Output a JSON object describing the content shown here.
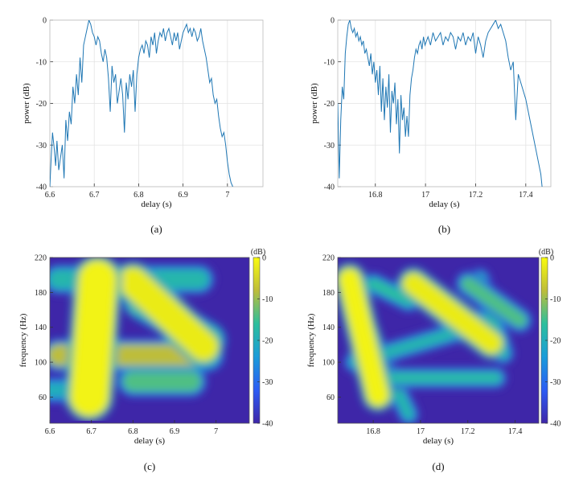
{
  "colors": {
    "line": "#1f77b4",
    "grid": "#e3e3e3",
    "axis": "#333333"
  },
  "chart_data": [
    {
      "id": "a",
      "type": "line",
      "caption": "(a)",
      "xlabel": "delay (s)",
      "ylabel": "power (dB)",
      "xlim": [
        6.6,
        7.08
      ],
      "ylim": [
        -40,
        0
      ],
      "xticks": [
        6.6,
        6.7,
        6.8,
        6.9,
        7
      ],
      "xtick_labels": [
        "6.6",
        "6.7",
        "6.8",
        "6.9",
        "7"
      ],
      "yticks": [
        0,
        -10,
        -20,
        -30,
        -40
      ],
      "ytick_labels": [
        "0",
        "-10",
        "-20",
        "-30",
        "-40"
      ],
      "grid": true,
      "x": [
        6.6,
        6.603,
        6.606,
        6.61,
        6.613,
        6.616,
        6.62,
        6.624,
        6.628,
        6.632,
        6.636,
        6.64,
        6.644,
        6.648,
        6.652,
        6.656,
        6.66,
        6.664,
        6.668,
        6.672,
        6.676,
        6.68,
        6.684,
        6.688,
        6.692,
        6.696,
        6.7,
        6.704,
        6.708,
        6.712,
        6.716,
        6.72,
        6.724,
        6.728,
        6.732,
        6.736,
        6.74,
        6.744,
        6.748,
        6.752,
        6.756,
        6.76,
        6.764,
        6.768,
        6.772,
        6.776,
        6.78,
        6.784,
        6.788,
        6.792,
        6.796,
        6.8,
        6.804,
        6.808,
        6.812,
        6.816,
        6.82,
        6.824,
        6.828,
        6.832,
        6.836,
        6.84,
        6.844,
        6.848,
        6.852,
        6.856,
        6.86,
        6.864,
        6.868,
        6.872,
        6.876,
        6.88,
        6.884,
        6.888,
        6.892,
        6.896,
        6.9,
        6.904,
        6.908,
        6.912,
        6.916,
        6.92,
        6.924,
        6.928,
        6.932,
        6.936,
        6.94,
        6.944,
        6.948,
        6.952,
        6.956,
        6.96,
        6.964,
        6.968,
        6.972,
        6.976,
        6.98,
        6.984,
        6.988,
        6.992,
        6.996,
        7.0,
        7.004,
        7.008,
        7.012
      ],
      "y": [
        -40,
        -33,
        -27,
        -31,
        -35,
        -29,
        -36,
        -33,
        -30,
        -38,
        -24,
        -29,
        -22,
        -25,
        -16,
        -20,
        -13,
        -18,
        -9,
        -15,
        -6,
        -4,
        -2,
        0,
        -1,
        -3,
        -4,
        -6,
        -4,
        -5,
        -8,
        -10,
        -7,
        -9,
        -14,
        -22,
        -11,
        -15,
        -13,
        -20,
        -17,
        -14,
        -18,
        -27,
        -15,
        -19,
        -13,
        -16,
        -12,
        -22,
        -13,
        -9,
        -7,
        -6,
        -8,
        -5,
        -6,
        -9,
        -4,
        -6,
        -3,
        -8,
        -5,
        -3,
        -4,
        -2,
        -5,
        -3,
        -2,
        -4,
        -6,
        -3,
        -5,
        -3,
        -7,
        -5,
        -3,
        -2,
        -1,
        -3,
        -2,
        -4,
        -2,
        -3,
        -5,
        -4,
        -2,
        -5,
        -7,
        -9,
        -12,
        -15,
        -14,
        -18,
        -20,
        -19,
        -23,
        -26,
        -28,
        -27,
        -30,
        -34,
        -37,
        -39,
        -40
      ]
    },
    {
      "id": "b",
      "type": "line",
      "caption": "(b)",
      "xlabel": "delay (s)",
      "ylabel": "power (dB)",
      "xlim": [
        16.65,
        17.5
      ],
      "ylim": [
        -40,
        0
      ],
      "xticks": [
        16.8,
        17,
        17.2,
        17.4
      ],
      "xtick_labels": [
        "16.8",
        "17",
        "17.2",
        "17.4"
      ],
      "yticks": [
        0,
        -10,
        -20,
        -30,
        -40
      ],
      "ytick_labels": [
        "0",
        "-10",
        "-20",
        "-30",
        "-40"
      ],
      "grid": true,
      "x": [
        16.65,
        16.656,
        16.662,
        16.668,
        16.674,
        16.68,
        16.686,
        16.692,
        16.698,
        16.704,
        16.71,
        16.716,
        16.722,
        16.728,
        16.734,
        16.74,
        16.746,
        16.752,
        16.758,
        16.764,
        16.77,
        16.776,
        16.782,
        16.788,
        16.794,
        16.8,
        16.806,
        16.812,
        16.818,
        16.824,
        16.83,
        16.836,
        16.842,
        16.848,
        16.854,
        16.86,
        16.866,
        16.872,
        16.878,
        16.884,
        16.89,
        16.896,
        16.902,
        16.908,
        16.914,
        16.92,
        16.926,
        16.932,
        16.938,
        16.944,
        16.95,
        16.956,
        16.962,
        16.968,
        16.974,
        16.98,
        16.986,
        16.992,
        16.998,
        17.004,
        17.01,
        17.02,
        17.03,
        17.04,
        17.05,
        17.06,
        17.07,
        17.08,
        17.09,
        17.1,
        17.11,
        17.12,
        17.13,
        17.14,
        17.15,
        17.16,
        17.17,
        17.18,
        17.19,
        17.2,
        17.21,
        17.22,
        17.23,
        17.24,
        17.25,
        17.26,
        17.27,
        17.28,
        17.29,
        17.3,
        17.31,
        17.32,
        17.33,
        17.34,
        17.35,
        17.36,
        17.37,
        17.38,
        17.39,
        17.4,
        17.41,
        17.42,
        17.43,
        17.44,
        17.45,
        17.46,
        17.465
      ],
      "y": [
        -20,
        -38,
        -24,
        -16,
        -19,
        -8,
        -4,
        -1,
        0,
        -2,
        -3,
        -2,
        -4,
        -3,
        -5,
        -4,
        -6,
        -5,
        -8,
        -7,
        -9,
        -11,
        -8,
        -13,
        -10,
        -15,
        -12,
        -18,
        -11,
        -22,
        -14,
        -24,
        -16,
        -21,
        -13,
        -27,
        -17,
        -20,
        -15,
        -25,
        -19,
        -32,
        -18,
        -24,
        -21,
        -28,
        -23,
        -28,
        -18,
        -14,
        -12,
        -9,
        -7,
        -8,
        -6,
        -5,
        -7,
        -4,
        -6,
        -5,
        -4,
        -6,
        -3,
        -5,
        -4,
        -3,
        -6,
        -4,
        -5,
        -3,
        -4,
        -7,
        -4,
        -5,
        -3,
        -6,
        -4,
        -5,
        -3,
        -8,
        -4,
        -6,
        -9,
        -5,
        -3,
        -2,
        -1,
        0,
        -2,
        -1,
        -3,
        -5,
        -9,
        -12,
        -10,
        -24,
        -13,
        -15,
        -17,
        -19,
        -22,
        -25,
        -28,
        -31,
        -34,
        -37,
        -40
      ]
    },
    {
      "id": "c",
      "type": "heatmap",
      "caption": "(c)",
      "xlabel": "delay (s)",
      "ylabel": "frequency (Hz)",
      "xlim": [
        6.6,
        7.08
      ],
      "ylim": [
        30,
        220
      ],
      "xticks": [
        6.6,
        6.7,
        6.8,
        6.9,
        7
      ],
      "xtick_labels": [
        "6.6",
        "6.7",
        "6.8",
        "6.9",
        "7"
      ],
      "yticks": [
        220,
        180,
        140,
        100,
        60
      ],
      "ytick_labels": [
        "220",
        "180",
        "140",
        "100",
        "60"
      ],
      "colorbar": {
        "label": "(dB)",
        "ticks": [
          0,
          -10,
          -20,
          -30,
          -40
        ],
        "tick_labels": [
          "0",
          "-10",
          "-20",
          "-30",
          "-40"
        ],
        "range": [
          -40,
          0
        ]
      },
      "colorscale": "parula",
      "bands": [
        {
          "x0": 6.695,
          "y0": 60,
          "x1": 6.715,
          "y1": 195,
          "width": 0.09,
          "level": -1
        },
        {
          "x0": 6.8,
          "y0": 192,
          "x1": 6.97,
          "y1": 118,
          "width": 0.07,
          "level": -2
        },
        {
          "x0": 6.82,
          "y0": 170,
          "x1": 6.98,
          "y1": 125,
          "width": 0.06,
          "level": -4
        },
        {
          "x0": 6.62,
          "y0": 108,
          "x1": 6.98,
          "y1": 108,
          "width": 0.05,
          "level": -8
        },
        {
          "x0": 6.62,
          "y0": 195,
          "x1": 6.96,
          "y1": 195,
          "width": 0.05,
          "level": -18
        },
        {
          "x0": 6.8,
          "y0": 78,
          "x1": 6.94,
          "y1": 78,
          "width": 0.05,
          "level": -14
        },
        {
          "x0": 6.6,
          "y0": 68,
          "x1": 6.66,
          "y1": 68,
          "width": 0.04,
          "level": -20
        }
      ]
    },
    {
      "id": "d",
      "type": "heatmap",
      "caption": "(d)",
      "xlabel": "delay (s)",
      "ylabel": "frequency (Hz)",
      "xlim": [
        16.65,
        17.5
      ],
      "ylim": [
        30,
        220
      ],
      "xticks": [
        16.8,
        17,
        17.2,
        17.4
      ],
      "xtick_labels": [
        "16.8",
        "17",
        "17.2",
        "17.4"
      ],
      "yticks": [
        220,
        180,
        140,
        100,
        60
      ],
      "ytick_labels": [
        "220",
        "180",
        "140",
        "100",
        "60"
      ],
      "colorbar": {
        "label": "(dB)",
        "ticks": [
          0,
          -10,
          -20,
          -30,
          -40
        ],
        "tick_labels": [
          "0",
          "-10",
          "-20",
          "-30",
          "-40"
        ],
        "range": [
          -40,
          0
        ]
      },
      "colorscale": "parula",
      "bands": [
        {
          "x0": 16.7,
          "y0": 195,
          "x1": 16.82,
          "y1": 62,
          "width": 0.09,
          "level": -1
        },
        {
          "x0": 16.97,
          "y0": 190,
          "x1": 17.3,
          "y1": 122,
          "width": 0.09,
          "level": -2
        },
        {
          "x0": 16.7,
          "y0": 180,
          "x1": 16.95,
          "y1": 40,
          "width": 0.05,
          "level": -18
        },
        {
          "x0": 16.8,
          "y0": 190,
          "x1": 16.95,
          "y1": 170,
          "width": 0.05,
          "level": -16
        },
        {
          "x0": 16.72,
          "y0": 100,
          "x1": 17.2,
          "y1": 138,
          "width": 0.05,
          "level": -18
        },
        {
          "x0": 17.2,
          "y0": 190,
          "x1": 17.42,
          "y1": 148,
          "width": 0.06,
          "level": -14
        },
        {
          "x0": 16.85,
          "y0": 82,
          "x1": 17.32,
          "y1": 82,
          "width": 0.05,
          "level": -17
        },
        {
          "x0": 17.25,
          "y0": 195,
          "x1": 17.35,
          "y1": 110,
          "width": 0.05,
          "level": -16
        }
      ]
    }
  ]
}
